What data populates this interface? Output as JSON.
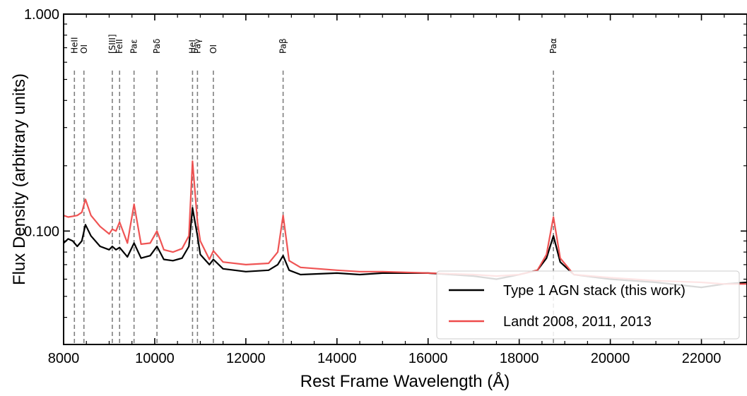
{
  "chart_data": {
    "type": "line",
    "title": "",
    "xlabel": "Rest Frame Wavelength (Å)",
    "ylabel": "Flux Density (arbitrary units)",
    "xlim": [
      8000,
      23000
    ],
    "ylim": [
      0.03,
      1.0
    ],
    "yscale": "log",
    "x_ticks": [
      8000,
      10000,
      12000,
      14000,
      16000,
      18000,
      20000,
      22000
    ],
    "x_tick_labels": [
      "8000",
      "10000",
      "12000",
      "14000",
      "16000",
      "18000",
      "20000",
      "22000"
    ],
    "y_ticks": [
      0.1,
      1.0
    ],
    "y_tick_labels": [
      "0.100",
      "1.000"
    ],
    "grid": false,
    "legend_position": "bottom-right",
    "series": [
      {
        "name": "Type 1 AGN stack (this work)",
        "color": "#000000",
        "x": [
          8000,
          8100,
          8200,
          8300,
          8400,
          8480,
          8600,
          8800,
          9000,
          9069,
          9150,
          9229,
          9400,
          9546,
          9700,
          9900,
          10049,
          10200,
          10400,
          10600,
          10750,
          10830,
          10938,
          11000,
          11200,
          11287,
          11500,
          12000,
          12500,
          12700,
          12818,
          12950,
          13200,
          14000,
          14500,
          15000,
          16000,
          17000,
          17500,
          18000,
          18400,
          18600,
          18751,
          18900,
          19200,
          20000,
          21000,
          22000,
          22500,
          23000
        ],
        "y": [
          0.088,
          0.092,
          0.09,
          0.085,
          0.09,
          0.107,
          0.095,
          0.085,
          0.082,
          0.085,
          0.082,
          0.084,
          0.076,
          0.088,
          0.075,
          0.077,
          0.085,
          0.074,
          0.073,
          0.075,
          0.085,
          0.128,
          0.095,
          0.078,
          0.07,
          0.074,
          0.067,
          0.065,
          0.066,
          0.07,
          0.077,
          0.066,
          0.063,
          0.064,
          0.063,
          0.064,
          0.064,
          0.062,
          0.06,
          0.063,
          0.066,
          0.075,
          0.095,
          0.072,
          0.063,
          0.06,
          0.058,
          0.055,
          0.057,
          0.058
        ]
      },
      {
        "name": "Landt 2008, 2011, 2013",
        "color": "#ee4b4b",
        "x": [
          8000,
          8100,
          8200,
          8300,
          8400,
          8480,
          8600,
          8800,
          9000,
          9069,
          9150,
          9229,
          9400,
          9546,
          9700,
          9900,
          10049,
          10200,
          10400,
          10600,
          10750,
          10830,
          10938,
          11000,
          11200,
          11287,
          11500,
          12000,
          12500,
          12700,
          12818,
          12950,
          13200,
          14000,
          14500,
          15000,
          16000,
          17000,
          17500,
          18000,
          18400,
          18600,
          18751,
          18900,
          19200,
          20000,
          21000,
          22000,
          22500,
          23000
        ],
        "y": [
          0.118,
          0.116,
          0.117,
          0.118,
          0.122,
          0.14,
          0.118,
          0.105,
          0.097,
          0.102,
          0.1,
          0.11,
          0.088,
          0.133,
          0.087,
          0.088,
          0.1,
          0.082,
          0.08,
          0.083,
          0.095,
          0.21,
          0.11,
          0.09,
          0.074,
          0.081,
          0.072,
          0.07,
          0.071,
          0.08,
          0.118,
          0.073,
          0.068,
          0.066,
          0.065,
          0.065,
          0.064,
          0.063,
          0.062,
          0.063,
          0.066,
          0.078,
          0.116,
          0.075,
          0.063,
          0.061,
          0.059,
          0.058,
          0.057,
          0.057
        ]
      }
    ],
    "line_markers": [
      {
        "wavelength": 8237,
        "label": "HeII"
      },
      {
        "wavelength": 8446,
        "label": "OI"
      },
      {
        "wavelength": 9069,
        "label": "[SIII]"
      },
      {
        "wavelength": 9229,
        "label": "FeII"
      },
      {
        "wavelength": 9546,
        "label": "Paε"
      },
      {
        "wavelength": 10049,
        "label": "Paδ"
      },
      {
        "wavelength": 10830,
        "label": "HeI"
      },
      {
        "wavelength": 10938,
        "label": "Paγ"
      },
      {
        "wavelength": 11287,
        "label": "OI"
      },
      {
        "wavelength": 12818,
        "label": "Paβ"
      },
      {
        "wavelength": 18751,
        "label": "Paα"
      }
    ]
  }
}
